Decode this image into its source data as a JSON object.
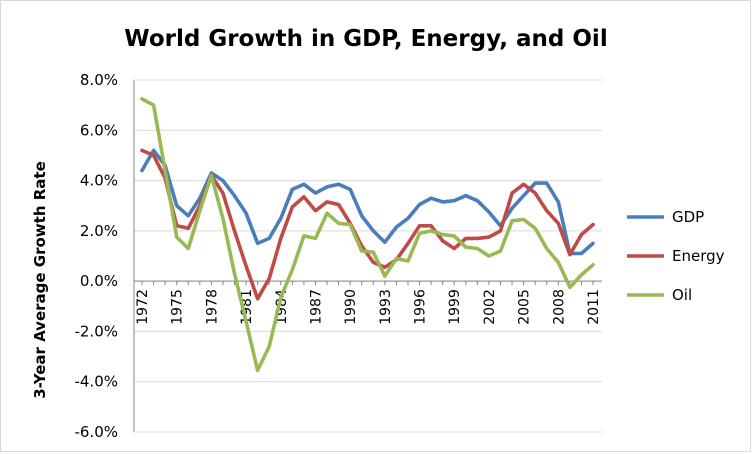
{
  "chart_data": {
    "type": "line",
    "title": "World Growth in GDP, Energy, and Oil",
    "ylabel": "3-Year Average Growth Rate",
    "xlabel": "",
    "x": [
      1972,
      1973,
      1974,
      1975,
      1976,
      1977,
      1978,
      1979,
      1980,
      1981,
      1982,
      1983,
      1984,
      1985,
      1986,
      1987,
      1988,
      1989,
      1990,
      1991,
      1992,
      1993,
      1994,
      1995,
      1996,
      1997,
      1998,
      1999,
      2000,
      2001,
      2002,
      2003,
      2004,
      2005,
      2006,
      2007,
      2008,
      2009,
      2010,
      2011
    ],
    "x_tick_labels": [
      "1972",
      "1975",
      "1978",
      "1981",
      "1984",
      "1987",
      "1990",
      "1993",
      "1996",
      "1999",
      "2002",
      "2005",
      "2008",
      "2011"
    ],
    "x_tick_years": [
      1972,
      1975,
      1978,
      1981,
      1984,
      1987,
      1990,
      1993,
      1996,
      1999,
      2002,
      2005,
      2008,
      2011
    ],
    "ylim": [
      -6.0,
      8.0
    ],
    "y_ticks": [
      8.0,
      6.0,
      4.0,
      2.0,
      0.0,
      -2.0,
      -4.0,
      -6.0
    ],
    "y_tick_labels": [
      "8.0%",
      "6.0%",
      "4.0%",
      "2.0%",
      "0.0%",
      "-2.0%",
      "-4.0%",
      "-6.0%"
    ],
    "grid": "horizontal",
    "legend_position": "right",
    "series": [
      {
        "name": "GDP",
        "color": "#4a7ebb",
        "values": [
          4.4,
          5.2,
          4.6,
          3.0,
          2.6,
          3.3,
          4.3,
          4.0,
          3.4,
          2.7,
          1.5,
          1.7,
          2.5,
          3.65,
          3.85,
          3.5,
          3.75,
          3.85,
          3.65,
          2.6,
          2.0,
          1.55,
          2.15,
          2.5,
          3.05,
          3.3,
          3.15,
          3.2,
          3.4,
          3.2,
          2.75,
          2.2,
          2.9,
          3.4,
          3.9,
          3.9,
          3.15,
          1.1,
          1.1,
          1.5
        ]
      },
      {
        "name": "Energy",
        "color": "#be4b48",
        "values": [
          5.2,
          5.0,
          4.1,
          2.2,
          2.1,
          3.0,
          4.2,
          3.5,
          2.0,
          0.6,
          -0.7,
          0.1,
          1.7,
          2.95,
          3.35,
          2.8,
          3.15,
          3.05,
          2.3,
          1.4,
          0.75,
          0.55,
          0.85,
          1.5,
          2.2,
          2.2,
          1.6,
          1.3,
          1.7,
          1.7,
          1.75,
          2.0,
          3.5,
          3.85,
          3.5,
          2.8,
          2.3,
          1.05,
          1.85,
          2.25
        ]
      },
      {
        "name": "Oil",
        "color": "#98b954",
        "values": [
          7.25,
          7.0,
          4.4,
          1.75,
          1.3,
          2.8,
          4.2,
          2.5,
          0.3,
          -1.6,
          -3.55,
          -2.6,
          -0.65,
          0.45,
          1.8,
          1.7,
          2.7,
          2.3,
          2.25,
          1.2,
          1.15,
          0.2,
          0.9,
          0.8,
          1.9,
          2.0,
          1.85,
          1.8,
          1.35,
          1.3,
          1.0,
          1.2,
          2.4,
          2.45,
          2.1,
          1.3,
          0.75,
          -0.25,
          0.25,
          0.65
        ]
      }
    ]
  }
}
